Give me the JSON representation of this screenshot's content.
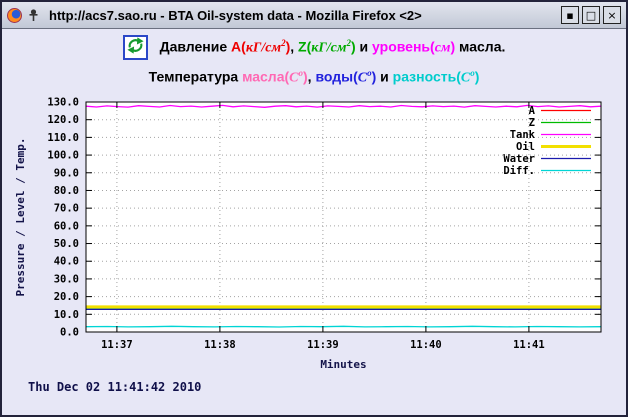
{
  "window": {
    "title": "http://acs7.sao.ru - BTA Oil-system data - Mozilla Firefox <2>",
    "controls": {
      "minimize": "▪",
      "maximize": "□",
      "close": "×"
    }
  },
  "page": {
    "heading1_segments": [
      {
        "text": "Давление ",
        "color": "#000000"
      },
      {
        "text": "A(",
        "color": "#ee0000"
      },
      {
        "text": "кГ/см",
        "color": "#ee0000",
        "italic": true
      },
      {
        "text": "2",
        "color": "#ee0000",
        "italic": true,
        "sup": true
      },
      {
        "text": ")",
        "color": "#ee0000"
      },
      {
        "text": ", ",
        "color": "#000000"
      },
      {
        "text": "Z(",
        "color": "#00aa00"
      },
      {
        "text": "кГ/см",
        "color": "#00aa00",
        "italic": true
      },
      {
        "text": "2",
        "color": "#00aa00",
        "italic": true,
        "sup": true
      },
      {
        "text": ")",
        "color": "#00aa00"
      },
      {
        "text": " и ",
        "color": "#000000"
      },
      {
        "text": "уровень(",
        "color": "#ff00ff"
      },
      {
        "text": "см",
        "color": "#ff00ff",
        "italic": true
      },
      {
        "text": ")",
        "color": "#ff00ff"
      },
      {
        "text": " масла.",
        "color": "#000000"
      }
    ],
    "heading2_segments": [
      {
        "text": "Температура ",
        "color": "#000000"
      },
      {
        "text": "масла(",
        "color": "#ff69b4"
      },
      {
        "text": "C",
        "color": "#ff69b4",
        "italic": true
      },
      {
        "text": "o",
        "color": "#ff69b4",
        "italic": true,
        "sup": true
      },
      {
        "text": ")",
        "color": "#ff69b4"
      },
      {
        "text": ", ",
        "color": "#000000"
      },
      {
        "text": "воды(",
        "color": "#2222dd"
      },
      {
        "text": "C",
        "color": "#2222dd",
        "italic": true
      },
      {
        "text": "o",
        "color": "#2222dd",
        "italic": true,
        "sup": true
      },
      {
        "text": ")",
        "color": "#2222dd"
      },
      {
        "text": " и ",
        "color": "#000000"
      },
      {
        "text": "разность(",
        "color": "#00cccc"
      },
      {
        "text": "C",
        "color": "#00cccc",
        "italic": true
      },
      {
        "text": "o",
        "color": "#00cccc",
        "italic": true,
        "sup": true
      },
      {
        "text": ")",
        "color": "#00cccc"
      }
    ],
    "timestamp": "Thu Dec 02 11:41:42 2010"
  },
  "chart_data": {
    "type": "line",
    "title": "",
    "xlabel": "Minutes",
    "ylabel": "Pressure / Level / Temp.",
    "ylim": [
      0,
      130
    ],
    "ytick_step": 10,
    "grid": true,
    "legend_position": "top-right",
    "x_ticks": [
      {
        "f": 0.06,
        "label": "11:37"
      },
      {
        "f": 0.26,
        "label": "11:38"
      },
      {
        "f": 0.46,
        "label": "11:39"
      },
      {
        "f": 0.66,
        "label": "11:40"
      },
      {
        "f": 0.86,
        "label": "11:41"
      }
    ],
    "series": [
      {
        "name": "A",
        "color": "#ff0000",
        "values": [
          13.8,
          13.8
        ]
      },
      {
        "name": "Z",
        "color": "#00bb00",
        "values": [
          13.5,
          13.5
        ]
      },
      {
        "name": "Tank",
        "color": "#ff00ff",
        "values": [
          127.6,
          127.2,
          127.8,
          127.4,
          127.1,
          127.9,
          127.5,
          127.2,
          128.0,
          127.4,
          127.7,
          127.2,
          127.6,
          128.1,
          127.3,
          127.8,
          127.4,
          127.0,
          127.6,
          127.9,
          127.3,
          127.7,
          127.1,
          127.8,
          127.5,
          127.2,
          127.9,
          127.4,
          127.6,
          127.2,
          128.0,
          127.5,
          127.3,
          127.8,
          127.4,
          127.7,
          127.1,
          127.9,
          127.5,
          127.2,
          127.6,
          127.3,
          128.1,
          127.4,
          127.8,
          127.2,
          127.5,
          127.9,
          127.3,
          127.6
        ]
      },
      {
        "name": "Oil",
        "color": "#f2e000",
        "width": 3,
        "values": [
          14.2,
          14.2
        ]
      },
      {
        "name": "Water",
        "color": "#1a1aad",
        "values": [
          12.8,
          12.8
        ]
      },
      {
        "name": "Diff.",
        "color": "#00d5d5",
        "values": [
          3.0,
          3.1,
          2.9,
          3.0,
          3.2,
          3.0,
          2.9,
          3.1,
          3.0,
          2.8,
          3.1,
          3.0,
          3.2,
          2.9,
          3.0,
          3.1,
          2.9,
          3.0,
          3.2,
          3.0,
          2.9,
          3.1,
          3.0,
          2.9,
          3.0
        ]
      }
    ]
  }
}
